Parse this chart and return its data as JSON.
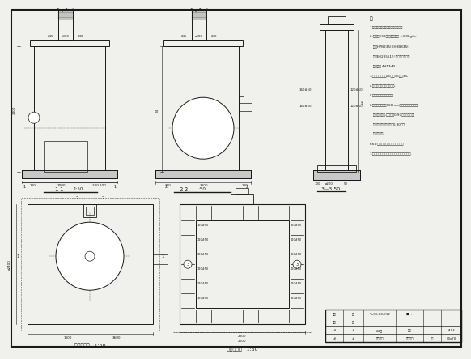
{
  "bg_color": "#f0f0ec",
  "line_color": "#1a1a1a",
  "notes_lines": [
    "注",
    "1.标注尺寸以毫米计，标高以米计；",
    "2.混凝土C30级 地基承载力 <3.0kg/m",
    "   钢筋HPB235(),HRB335()",
    "   焊条E0235515°钢筋焊接时焊缝",
    "   最低厚度 4#P143",
    "3.保护层厚度：底40，壁35，顶35;",
    "4.盖板在预制前，预埋铁件;",
    "5.盖板预制混凝土强度达;",
    "6.混凝土浇筑分层600mm，振捣密实，振捣时",
    "   不得触动钢筋,自密实度0.97，混凝土填充",
    "   的通过性和稳定性达到0.90，而",
    "   制试验报告.",
    "6.6#钢筋在施工时应固定好钢筋；",
    "7.施工完毕相关技术资料移交归档，钢筋记录."
  ],
  "label_11": "1-1",
  "label_11_scale": "1:50",
  "label_22": "2-2",
  "label_22_scale": ":50",
  "label_33": "3-㍅3:50",
  "label_plan1": "结构平面图   1:50",
  "label_plan2": "井壁配筋图   1:50"
}
